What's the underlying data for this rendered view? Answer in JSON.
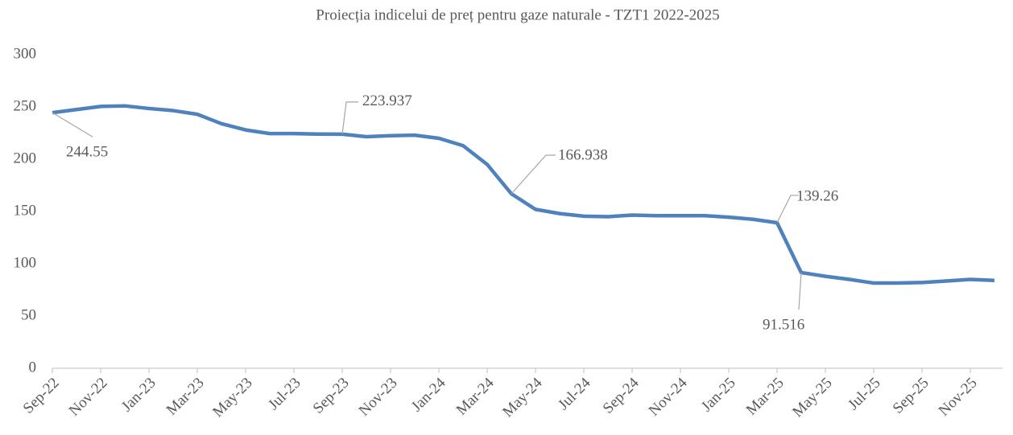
{
  "chart_data": {
    "type": "line",
    "title": "Proiecția indicelui de preț pentru gaze naturale -  TZT1 2022-2025",
    "categories": [
      "Sep-22",
      null,
      "Nov-22",
      null,
      "Jan-23",
      null,
      "Mar-23",
      null,
      "May-23",
      null,
      "Jul-23",
      null,
      "Sep-23",
      null,
      "Nov-23",
      null,
      "Jan-24",
      null,
      "Mar-24",
      null,
      "May-24",
      null,
      "Jul-24",
      null,
      "Sep-24",
      null,
      "Nov-24",
      null,
      "Jan-25",
      null,
      "Mar-25",
      null,
      "May-25",
      null,
      "Jul-25",
      null,
      "Sep-25",
      null,
      "Nov-25",
      null
    ],
    "series": [
      {
        "name": "TZT1",
        "color": "#4f81bd",
        "values": [
          244.55,
          247.5,
          250.5,
          251,
          248.5,
          246.5,
          243,
          234,
          228,
          224.5,
          224.5,
          224,
          223.937,
          221.5,
          222.5,
          223,
          220,
          213,
          195,
          166.938,
          152,
          148,
          145.5,
          145,
          146.5,
          146,
          146,
          146,
          144.5,
          142.5,
          139.26,
          91.516,
          88,
          85,
          81.5,
          81.5,
          82,
          83.5,
          85,
          84
        ],
        "value_labels": [
          "244.55",
          null,
          null,
          null,
          null,
          null,
          null,
          null,
          null,
          null,
          null,
          null,
          "223.937",
          null,
          null,
          null,
          null,
          null,
          null,
          "166.938",
          null,
          null,
          null,
          null,
          null,
          null,
          null,
          null,
          null,
          null,
          "139.26",
          "91.516",
          null,
          null,
          null,
          null,
          null,
          null,
          null,
          null
        ]
      }
    ],
    "ylim": [
      0,
      300
    ],
    "yticks": [
      0,
      50,
      100,
      150,
      200,
      250,
      300
    ],
    "grid": false
  }
}
